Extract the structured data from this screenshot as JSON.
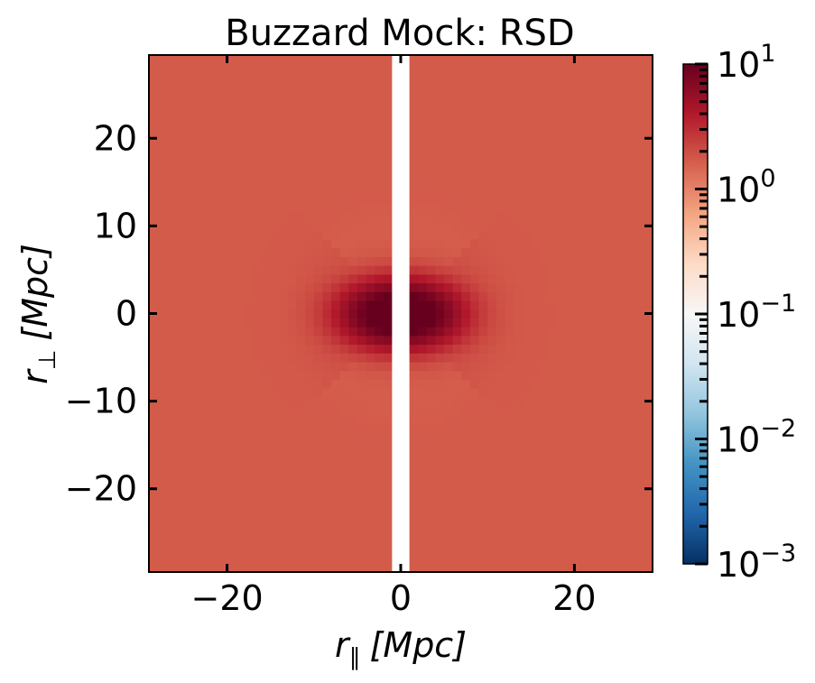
{
  "chart_data": {
    "type": "heatmap",
    "title": "Buzzard Mock: RSD",
    "xlabel": {
      "symbol": "r",
      "sub": "∥",
      "unit": "[Mpc]"
    },
    "ylabel": {
      "symbol": "r",
      "sub": "⊥",
      "unit": "[Mpc]"
    },
    "xlim": [
      -29,
      29
    ],
    "ylim": [
      -29.5,
      29.5
    ],
    "xticks": [
      -20,
      0,
      20
    ],
    "xtick_labels": [
      "−20",
      "0",
      "20"
    ],
    "yticks": [
      -20,
      -10,
      0,
      10,
      20
    ],
    "ytick_labels": [
      "−20",
      "−10",
      "0",
      "10",
      "20"
    ],
    "colorscale": "RdBu_r",
    "log_scale": true,
    "color_range": [
      0.001,
      10
    ],
    "colorbar_ticks": [
      {
        "base": "10",
        "exp": "1"
      },
      {
        "base": "10",
        "exp": "0"
      },
      {
        "base": "10",
        "exp": "−1"
      },
      {
        "base": "10",
        "exp": "−2"
      },
      {
        "base": "10",
        "exp": "−3"
      }
    ],
    "field": {
      "background_value": 1.7,
      "peak_value": 9.5,
      "peak_locations": [
        [
          -2,
          0
        ],
        [
          2,
          0
        ]
      ],
      "masked_band_x": [
        -1,
        1
      ]
    }
  }
}
